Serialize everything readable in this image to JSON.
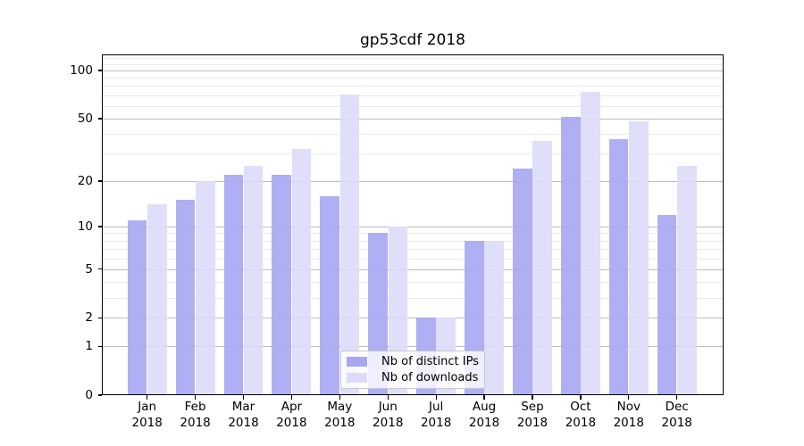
{
  "title": "gp53cdf 2018",
  "colors": {
    "distinct_ips": "#a8a8f2",
    "downloads": "#dcdcfa",
    "grid_major": "#bdbdbd",
    "grid_minor": "#eaeaea",
    "axis": "#000000",
    "background": "#ffffff"
  },
  "chart_data": {
    "type": "bar",
    "title": "gp53cdf 2018",
    "categories": [
      "Jan 2018",
      "Feb 2018",
      "Mar 2018",
      "Apr 2018",
      "May 2018",
      "Jun 2018",
      "Jul 2018",
      "Aug 2018",
      "Sep 2018",
      "Oct 2018",
      "Nov 2018",
      "Dec 2018"
    ],
    "series": [
      {
        "name": "Nb of distinct IPs",
        "color": "#a8a8f2",
        "values": [
          11,
          15,
          22,
          22,
          16,
          9,
          2,
          8,
          24,
          51,
          37,
          12
        ]
      },
      {
        "name": "Nb of downloads",
        "color": "#dcdcfa",
        "values": [
          14,
          20,
          25,
          32,
          71,
          10,
          2,
          8,
          36,
          74,
          48,
          25
        ]
      }
    ],
    "y_scale": "log10(1+value)",
    "y_ticks": [
      0,
      1,
      2,
      5,
      10,
      20,
      50,
      100
    ],
    "y_minor_ticks": [
      3,
      4,
      6,
      7,
      8,
      9,
      30,
      40,
      60,
      70,
      80,
      90,
      110,
      120
    ],
    "ylim": [
      0,
      126
    ],
    "grid": true,
    "legend_position": "lower center"
  }
}
